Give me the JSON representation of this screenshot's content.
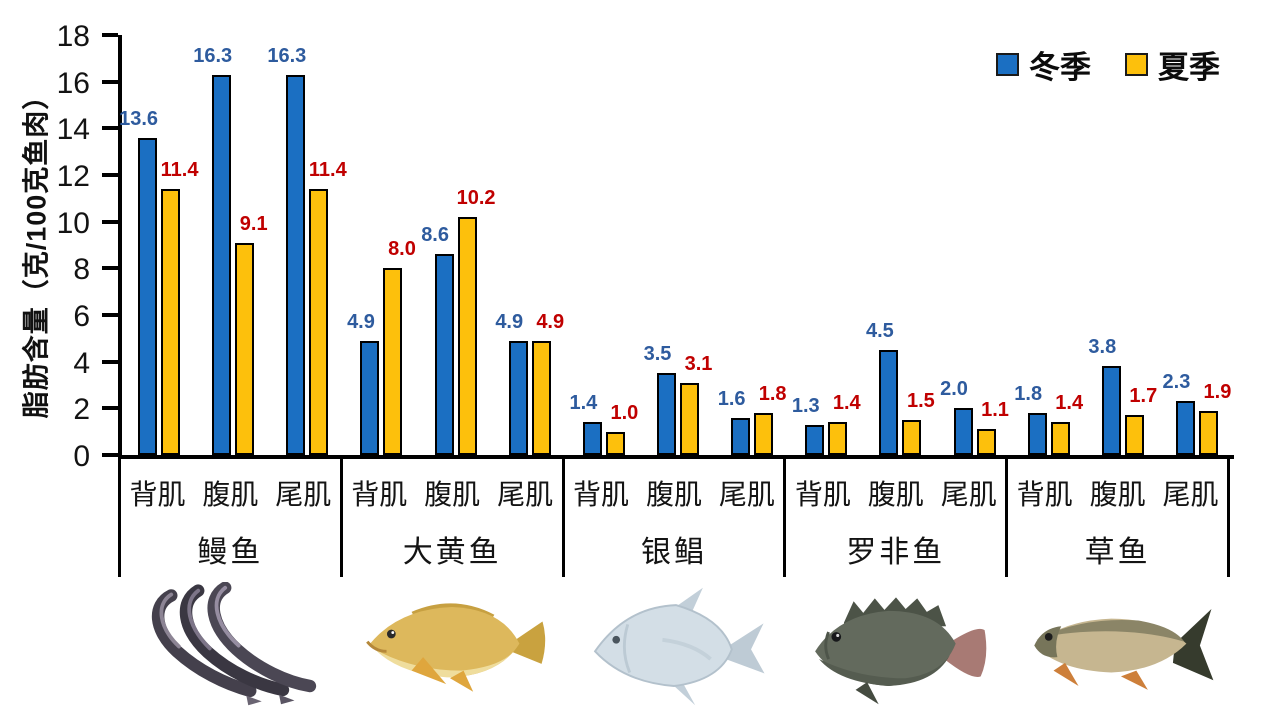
{
  "chart_data": {
    "type": "bar",
    "ylabel": "脂肪含量（克/100克鱼肉）",
    "ylim": [
      0,
      18
    ],
    "yticks": [
      18,
      16,
      14,
      12,
      10,
      8,
      6,
      4,
      2,
      0
    ],
    "grid": false,
    "legend_position": "top-right",
    "legend": [
      {
        "label": "冬季",
        "color": "#1B6FC2"
      },
      {
        "label": "夏季",
        "color": "#FDC00C"
      }
    ],
    "value_label_colors": {
      "winter": "#2E5B9E",
      "summer": "#C00000"
    },
    "muscle_labels": [
      "背肌",
      "腹肌",
      "尾肌"
    ],
    "group_labels": [
      "鳗鱼",
      "大黄鱼",
      "银鲳",
      "罗非鱼",
      "草鱼"
    ],
    "groups": [
      {
        "fish": "鳗鱼",
        "icon": "eel-image",
        "winter": [
          13.6,
          16.3,
          16.3
        ],
        "summer": [
          11.4,
          9.1,
          11.4
        ]
      },
      {
        "fish": "大黄鱼",
        "icon": "yellow-croaker-image",
        "winter": [
          4.9,
          8.6,
          4.9
        ],
        "summer": [
          8.0,
          10.2,
          4.9
        ]
      },
      {
        "fish": "银鲳",
        "icon": "silver-pomfret-image",
        "winter": [
          1.4,
          3.5,
          1.6
        ],
        "summer": [
          1.0,
          3.1,
          1.8
        ]
      },
      {
        "fish": "罗非鱼",
        "icon": "tilapia-image",
        "winter": [
          1.3,
          4.5,
          2.0
        ],
        "summer": [
          1.4,
          1.5,
          1.1
        ]
      },
      {
        "fish": "草鱼",
        "icon": "grass-carp-image",
        "winter": [
          1.8,
          3.8,
          2.3
        ],
        "summer": [
          1.4,
          1.7,
          1.9
        ]
      }
    ],
    "series": [
      {
        "name": "冬季",
        "values": [
          13.6,
          16.3,
          16.3,
          4.9,
          8.6,
          4.9,
          1.4,
          3.5,
          1.6,
          1.3,
          4.5,
          2.0,
          1.8,
          3.8,
          2.3
        ]
      },
      {
        "name": "夏季",
        "values": [
          11.4,
          9.1,
          11.4,
          8.0,
          10.2,
          4.9,
          1.0,
          3.1,
          1.8,
          1.4,
          1.5,
          1.1,
          1.4,
          1.7,
          1.9
        ]
      }
    ]
  }
}
